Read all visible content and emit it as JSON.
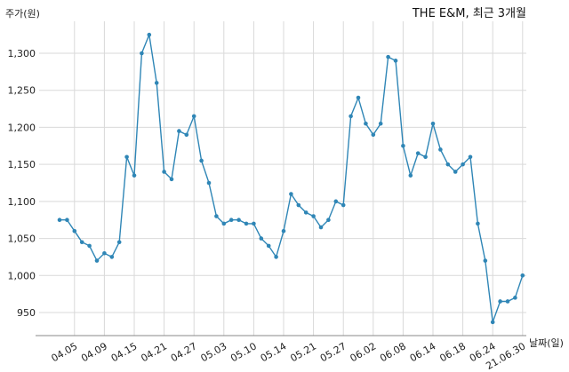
{
  "chart_data": {
    "type": "line",
    "title": "THE E&M, 최근 3개월",
    "ylabel": "주가(원)",
    "xlabel": "날짜(일)",
    "ylim": [
      915,
      1345
    ],
    "y_ticks": [
      950,
      1000,
      1050,
      1100,
      1150,
      1200,
      1250,
      1300
    ],
    "y_tick_labels": [
      "950",
      "1,000",
      "1,050",
      "1,100",
      "1,150",
      "1,200",
      "1,250",
      "1,300"
    ],
    "x_tick_labels": [
      "04.05",
      "04.09",
      "04.15",
      "04.21",
      "04.27",
      "05.03",
      "05.10",
      "05.14",
      "05.21",
      "05.27",
      "06.02",
      "06.08",
      "06.14",
      "06.18",
      "06.24",
      "21.06.30"
    ],
    "x_tick_index": [
      2,
      6,
      10,
      14,
      18,
      22,
      26,
      30,
      34,
      38,
      42,
      46,
      50,
      54,
      58,
      62
    ],
    "grid": true,
    "line_color": "#2f86b6",
    "series": [
      {
        "values": [
          1075,
          1075,
          1060,
          1045,
          1040,
          1020,
          1030,
          1025,
          1045,
          1160,
          1135,
          1300,
          1325,
          1260,
          1140,
          1130,
          1195,
          1190,
          1215,
          1155,
          1125,
          1080,
          1070,
          1075,
          1075,
          1070,
          1070,
          1050,
          1040,
          1025,
          1060,
          1110,
          1095,
          1085,
          1080,
          1065,
          1075,
          1100,
          1095,
          1215,
          1240,
          1205,
          1190,
          1205,
          1295,
          1290,
          1175,
          1135,
          1165,
          1160,
          1205,
          1170,
          1150,
          1140,
          1150,
          1160,
          1070,
          1020,
          937,
          965,
          965,
          970,
          1000
        ]
      }
    ]
  }
}
